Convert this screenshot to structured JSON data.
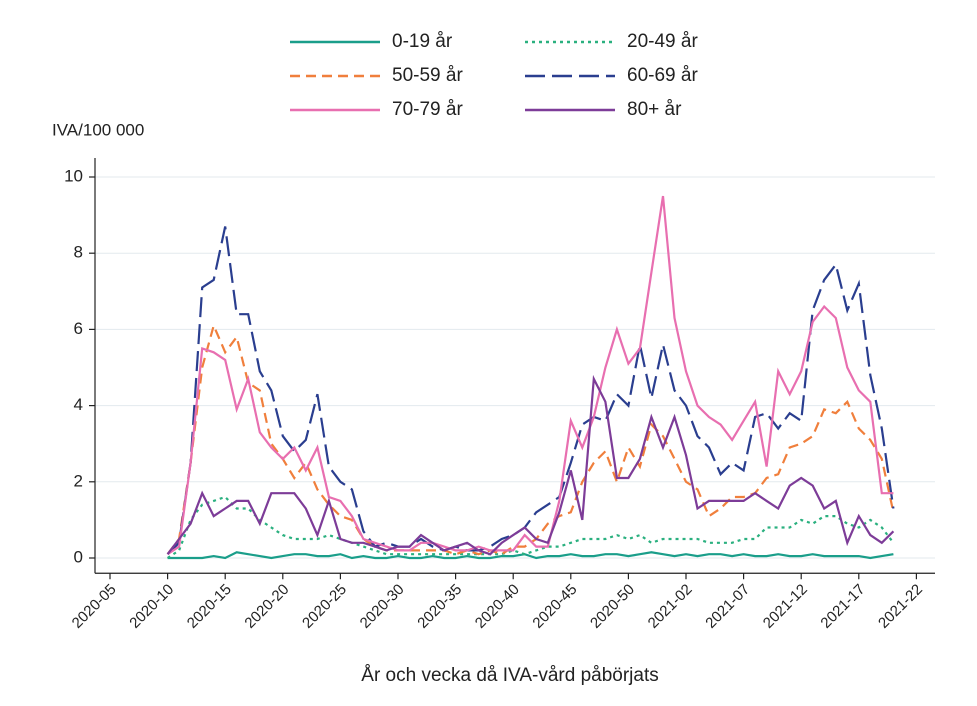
{
  "chart_data": {
    "type": "line",
    "y_label": "IVA/100 000",
    "x_label": "År och vecka då IVA-vård påbörjats",
    "categories": [
      "2020-05",
      null,
      null,
      null,
      null,
      "2020-10",
      null,
      null,
      null,
      null,
      "2020-15",
      null,
      null,
      null,
      null,
      "2020-20",
      null,
      null,
      null,
      null,
      "2020-25",
      null,
      null,
      null,
      null,
      "2020-30",
      null,
      null,
      null,
      null,
      "2020-35",
      null,
      null,
      null,
      null,
      "2020-40",
      null,
      null,
      null,
      null,
      "2020-45",
      null,
      null,
      null,
      null,
      "2020-50",
      null,
      null,
      null,
      null,
      "2021-02",
      null,
      null,
      null,
      null,
      "2021-07",
      null,
      null,
      null,
      null,
      "2021-12",
      null,
      null,
      null,
      null,
      "2021-17",
      null,
      null,
      null,
      null,
      "2021-22"
    ],
    "ylim": [
      -0.4,
      10.5
    ],
    "yticks": [
      0,
      2,
      4,
      6,
      8,
      10
    ],
    "grid": true,
    "series": [
      {
        "name": "0-19 år",
        "color": "#1a9e8a",
        "dash": "solid",
        "values": [
          null,
          null,
          null,
          null,
          null,
          0,
          0,
          0,
          0,
          0.05,
          0,
          0.15,
          0.1,
          0.05,
          0,
          0.05,
          0.1,
          0.1,
          0.05,
          0.05,
          0.1,
          0,
          0.05,
          0,
          0,
          0.05,
          0,
          0,
          0.05,
          0,
          0,
          0.05,
          0,
          0,
          0.05,
          0.05,
          0.1,
          0,
          0.05,
          0.05,
          0.1,
          0.05,
          0.05,
          0.1,
          0.1,
          0.05,
          0.1,
          0.15,
          0.1,
          0.05,
          0.1,
          0.05,
          0.1,
          0.1,
          0.05,
          0.1,
          0.05,
          0.05,
          0.1,
          0.05,
          0.05,
          0.1,
          0.05,
          0.05,
          0.05,
          0.05,
          0,
          0.05,
          0.1,
          null,
          null
        ]
      },
      {
        "name": "20-49 år",
        "color": "#2ab07f",
        "dash": "dotted",
        "values": [
          null,
          null,
          null,
          null,
          null,
          0,
          0.2,
          1.0,
          1.4,
          1.5,
          1.6,
          1.3,
          1.3,
          1.0,
          0.8,
          0.6,
          0.5,
          0.5,
          0.5,
          0.6,
          0.5,
          0.4,
          0.3,
          0.2,
          0.1,
          0.1,
          0.1,
          0.1,
          0.1,
          0.1,
          0.1,
          0.1,
          0.1,
          0.1,
          0.1,
          0.2,
          0.1,
          0.2,
          0.3,
          0.3,
          0.4,
          0.5,
          0.5,
          0.5,
          0.6,
          0.5,
          0.6,
          0.4,
          0.5,
          0.5,
          0.5,
          0.5,
          0.4,
          0.4,
          0.4,
          0.5,
          0.5,
          0.8,
          0.8,
          0.8,
          1.0,
          0.9,
          1.1,
          1.1,
          0.9,
          0.8,
          1.0,
          0.8,
          0.4,
          null,
          null
        ]
      },
      {
        "name": "50-59 år",
        "color": "#f07f3c",
        "dash": "dashed",
        "values": [
          null,
          null,
          null,
          null,
          null,
          0.1,
          0.5,
          2.5,
          5.0,
          6.1,
          5.4,
          5.8,
          4.6,
          4.4,
          3.0,
          2.6,
          2.1,
          2.5,
          1.8,
          1.4,
          1.1,
          1.0,
          0.5,
          0.3,
          0.2,
          0.2,
          0.2,
          0.2,
          0.2,
          0.2,
          0.1,
          0.2,
          0.1,
          0.2,
          0.1,
          0.3,
          0.3,
          0.5,
          0.9,
          1.1,
          1.2,
          2.0,
          2.5,
          2.8,
          2.0,
          2.9,
          2.4,
          3.5,
          3.2,
          2.6,
          2.0,
          1.8,
          1.1,
          1.3,
          1.6,
          1.6,
          1.7,
          2.1,
          2.2,
          2.9,
          3.0,
          3.2,
          3.9,
          3.8,
          4.1,
          3.4,
          3.1,
          2.6,
          1.2,
          null,
          null
        ]
      },
      {
        "name": "60-69 år",
        "color": "#2a3e8f",
        "dash": "longdash",
        "values": [
          null,
          null,
          null,
          null,
          null,
          0.1,
          0.4,
          2.5,
          7.1,
          7.3,
          8.7,
          6.4,
          6.4,
          4.9,
          4.4,
          3.2,
          2.8,
          3.1,
          4.3,
          2.4,
          2.0,
          1.8,
          0.7,
          0.3,
          0.4,
          0.3,
          0.3,
          0.5,
          0.3,
          0.2,
          0.3,
          0.2,
          0.2,
          0.3,
          0.5,
          0.6,
          0.8,
          1.2,
          1.4,
          1.6,
          2.5,
          3.5,
          3.7,
          3.6,
          4.3,
          4.0,
          5.6,
          4.2,
          5.6,
          4.4,
          4.0,
          3.2,
          2.9,
          2.2,
          2.5,
          2.3,
          3.7,
          3.8,
          3.4,
          3.8,
          3.6,
          6.5,
          7.3,
          7.7,
          6.5,
          7.2,
          4.8,
          3.4,
          1.3,
          null,
          null
        ]
      },
      {
        "name": "70-79 år",
        "color": "#e86fb0",
        "dash": "solid",
        "values": [
          null,
          null,
          null,
          null,
          null,
          0.1,
          0.3,
          2.5,
          5.5,
          5.4,
          5.2,
          3.9,
          4.7,
          3.3,
          2.9,
          2.6,
          2.9,
          2.3,
          2.9,
          1.6,
          1.5,
          1.1,
          0.5,
          0.4,
          0.3,
          0.2,
          0.2,
          0.4,
          0.4,
          0.3,
          0.2,
          0.2,
          0.3,
          0.2,
          0.2,
          0.2,
          0.6,
          0.3,
          0.3,
          1.5,
          3.6,
          2.9,
          3.7,
          5.0,
          6.0,
          5.1,
          5.5,
          7.5,
          9.5,
          6.3,
          4.9,
          4.0,
          3.7,
          3.5,
          3.1,
          3.6,
          4.1,
          2.4,
          4.9,
          4.3,
          4.9,
          6.2,
          6.6,
          6.3,
          5.0,
          4.4,
          4.1,
          1.7,
          1.7,
          null,
          null
        ]
      },
      {
        "name": "80+ år",
        "color": "#7d3c98",
        "dash": "solid",
        "values": [
          null,
          null,
          null,
          null,
          null,
          0.1,
          0.5,
          0.9,
          1.7,
          1.1,
          1.3,
          1.5,
          1.5,
          0.9,
          1.7,
          1.7,
          1.7,
          1.3,
          0.6,
          1.5,
          0.5,
          0.4,
          0.4,
          0.3,
          0.2,
          0.3,
          0.3,
          0.6,
          0.4,
          0.2,
          0.3,
          0.4,
          0.2,
          0.1,
          0.4,
          0.6,
          0.8,
          0.5,
          0.4,
          1.2,
          2.3,
          1.0,
          4.7,
          4.1,
          2.1,
          2.1,
          2.6,
          3.7,
          2.9,
          3.7,
          2.7,
          1.3,
          1.5,
          1.5,
          1.5,
          1.5,
          1.7,
          1.5,
          1.3,
          1.9,
          2.1,
          1.9,
          1.3,
          1.5,
          0.4,
          1.1,
          0.6,
          0.4,
          0.7,
          null,
          null
        ]
      }
    ]
  }
}
